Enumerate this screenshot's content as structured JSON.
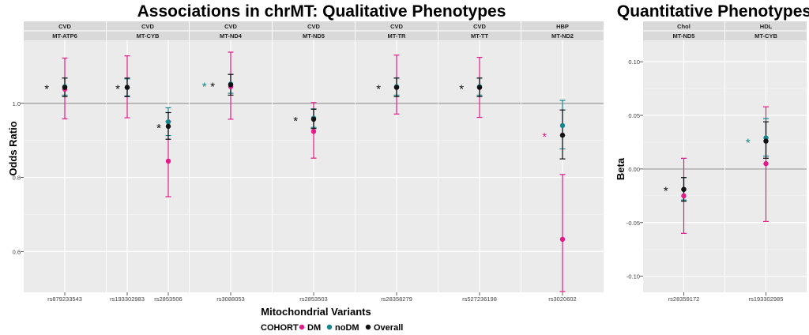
{
  "title_left": "Associations in chrMT: Qualitative Phenotypes",
  "title_right": "Quantitative Phenotypes",
  "legend": {
    "title": "COHORT",
    "items": [
      {
        "label": "DM",
        "color": "#e6198a"
      },
      {
        "label": "noDM",
        "color": "#14868c"
      },
      {
        "label": "Overall",
        "color": "#111111"
      }
    ]
  },
  "chart_data": [
    {
      "type": "scatter",
      "subtype": "point-range (forest) faceted",
      "title": "Associations in chrMT: Qualitative Phenotypes",
      "xlabel": "Mitochondrial Variants",
      "ylabel": "Odds Ratio",
      "ylim": [
        0.49,
        1.17
      ],
      "yticks": [
        0.6,
        0.8,
        1.0
      ],
      "yticklabels": [
        "0.6",
        "0.8",
        "1.0"
      ],
      "reference_line": 1.0,
      "facets": [
        {
          "phenotype": "CVD",
          "gene": "MT-ATP6",
          "variants": [
            {
              "name": "rs879233543",
              "star": true,
              "star_color": "#111111",
              "points": [
                {
                  "cohort": "DM",
                  "value": 1.038,
                  "lo": 0.958,
                  "hi": 1.122
                },
                {
                  "cohort": "noDM",
                  "value": 1.045,
                  "lo": 1.022,
                  "hi": 1.068
                },
                {
                  "cohort": "Overall",
                  "value": 1.043,
                  "lo": 1.018,
                  "hi": 1.068
                }
              ]
            }
          ]
        },
        {
          "phenotype": "CVD",
          "gene": "MT-CYB",
          "variants": [
            {
              "name": "rs193302983",
              "star": true,
              "star_color": "#111111",
              "points": [
                {
                  "cohort": "DM",
                  "value": 1.043,
                  "lo": 0.961,
                  "hi": 1.128
                },
                {
                  "cohort": "noDM",
                  "value": 1.043,
                  "lo": 1.02,
                  "hi": 1.066
                },
                {
                  "cohort": "Overall",
                  "value": 1.043,
                  "lo": 1.018,
                  "hi": 1.068
                }
              ]
            },
            {
              "name": "rs2853506",
              "star": true,
              "star_color": "#111111",
              "points": [
                {
                  "cohort": "DM",
                  "value": 0.844,
                  "lo": 0.748,
                  "hi": 0.952
                },
                {
                  "cohort": "noDM",
                  "value": 0.95,
                  "lo": 0.913,
                  "hi": 0.988
                },
                {
                  "cohort": "Overall",
                  "value": 0.938,
                  "lo": 0.903,
                  "hi": 0.975
                }
              ]
            }
          ]
        },
        {
          "phenotype": "CVD",
          "gene": "MT-ND4",
          "variants": [
            {
              "name": "rs3088053",
              "star": true,
              "star_color": "#111111",
              "extra_star": true,
              "extra_star_color": "#14868c",
              "points": [
                {
                  "cohort": "DM",
                  "value": 1.045,
                  "lo": 0.957,
                  "hi": 1.138
                },
                {
                  "cohort": "noDM",
                  "value": 1.052,
                  "lo": 1.027,
                  "hi": 1.078
                },
                {
                  "cohort": "Overall",
                  "value": 1.05,
                  "lo": 1.022,
                  "hi": 1.078
                }
              ]
            }
          ]
        },
        {
          "phenotype": "CVD",
          "gene": "MT-ND5",
          "variants": [
            {
              "name": "rs2853503",
              "star": true,
              "star_color": "#111111",
              "points": [
                {
                  "cohort": "DM",
                  "value": 0.924,
                  "lo": 0.852,
                  "hi": 1.002
                },
                {
                  "cohort": "noDM",
                  "value": 0.96,
                  "lo": 0.935,
                  "hi": 0.985
                },
                {
                  "cohort": "Overall",
                  "value": 0.957,
                  "lo": 0.932,
                  "hi": 0.984
                }
              ]
            }
          ]
        },
        {
          "phenotype": "CVD",
          "gene": "MT-TR",
          "variants": [
            {
              "name": "rs28358279",
              "star": true,
              "star_color": "#111111",
              "points": [
                {
                  "cohort": "DM",
                  "value": 1.043,
                  "lo": 0.971,
                  "hi": 1.13
                },
                {
                  "cohort": "noDM",
                  "value": 1.045,
                  "lo": 1.022,
                  "hi": 1.068
                },
                {
                  "cohort": "Overall",
                  "value": 1.043,
                  "lo": 1.018,
                  "hi": 1.068
                }
              ]
            }
          ]
        },
        {
          "phenotype": "CVD",
          "gene": "MT-TT",
          "variants": [
            {
              "name": "rs527236198",
              "star": true,
              "star_color": "#111111",
              "points": [
                {
                  "cohort": "DM",
                  "value": 1.043,
                  "lo": 0.962,
                  "hi": 1.124
                },
                {
                  "cohort": "noDM",
                  "value": 1.045,
                  "lo": 1.022,
                  "hi": 1.068
                },
                {
                  "cohort": "Overall",
                  "value": 1.043,
                  "lo": 1.018,
                  "hi": 1.068
                }
              ]
            }
          ]
        },
        {
          "phenotype": "HBP",
          "gene": "MT-ND2",
          "variants": [
            {
              "name": "rs3020602",
              "star": true,
              "star_color": "#e6198a",
              "points": [
                {
                  "cohort": "DM",
                  "value": 0.633,
                  "lo": 0.492,
                  "hi": 0.808
                },
                {
                  "cohort": "noDM",
                  "value": 0.94,
                  "lo": 0.877,
                  "hi": 1.008
                },
                {
                  "cohort": "Overall",
                  "value": 0.914,
                  "lo": 0.85,
                  "hi": 0.982
                }
              ]
            }
          ]
        }
      ]
    },
    {
      "type": "scatter",
      "subtype": "point-range (forest) faceted",
      "title": "Quantitative Phenotypes",
      "xlabel": "",
      "ylabel": "Beta",
      "ylim": [
        -0.115,
        0.12
      ],
      "yticks": [
        -0.1,
        -0.05,
        0.0,
        0.05,
        0.1
      ],
      "yticklabels": [
        "-0.10",
        "-0.05",
        "0.00",
        "0.05",
        "0.10"
      ],
      "reference_line": 0.0,
      "facets": [
        {
          "phenotype": "Chol",
          "gene": "MT-ND5",
          "variants": [
            {
              "name": "rs28359172",
              "star": true,
              "star_color": "#111111",
              "points": [
                {
                  "cohort": "DM",
                  "value": -0.025,
                  "lo": -0.06,
                  "hi": 0.01
                },
                {
                  "cohort": "noDM",
                  "value": -0.019,
                  "lo": -0.029,
                  "hi": -0.008
                },
                {
                  "cohort": "Overall",
                  "value": -0.019,
                  "lo": -0.03,
                  "hi": -0.008
                }
              ]
            }
          ]
        },
        {
          "phenotype": "HDL",
          "gene": "MT-CYB",
          "variants": [
            {
              "name": "rs193302985",
              "star": true,
              "star_color": "#14868c",
              "points": [
                {
                  "cohort": "DM",
                  "value": 0.005,
                  "lo": -0.049,
                  "hi": 0.058
                },
                {
                  "cohort": "noDM",
                  "value": 0.029,
                  "lo": 0.012,
                  "hi": 0.047
                },
                {
                  "cohort": "Overall",
                  "value": 0.026,
                  "lo": 0.01,
                  "hi": 0.044
                }
              ]
            }
          ]
        }
      ]
    }
  ]
}
